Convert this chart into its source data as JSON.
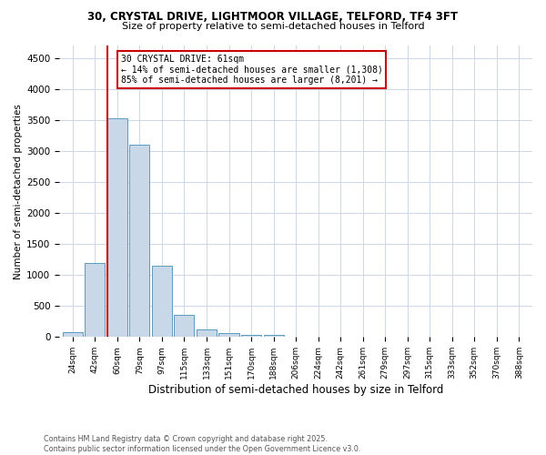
{
  "title_line1": "30, CRYSTAL DRIVE, LIGHTMOOR VILLAGE, TELFORD, TF4 3FT",
  "title_line2": "Size of property relative to semi-detached houses in Telford",
  "xlabel": "Distribution of semi-detached houses by size in Telford",
  "ylabel": "Number of semi-detached properties",
  "categories": [
    "24sqm",
    "42sqm",
    "60sqm",
    "79sqm",
    "97sqm",
    "115sqm",
    "133sqm",
    "151sqm",
    "170sqm",
    "188sqm",
    "206sqm",
    "224sqm",
    "242sqm",
    "261sqm",
    "279sqm",
    "297sqm",
    "315sqm",
    "333sqm",
    "352sqm",
    "370sqm",
    "388sqm"
  ],
  "values": [
    80,
    1200,
    3520,
    3100,
    1150,
    350,
    120,
    60,
    35,
    30,
    0,
    0,
    0,
    0,
    0,
    0,
    0,
    0,
    0,
    0,
    0
  ],
  "bar_color": "#c8d8e8",
  "bar_edge_color": "#5a9abf",
  "marker_bar_index": 2,
  "marker_color": "#cc0000",
  "ylim": [
    0,
    4700
  ],
  "yticks": [
    0,
    500,
    1000,
    1500,
    2000,
    2500,
    3000,
    3500,
    4000,
    4500
  ],
  "annotation_title": "30 CRYSTAL DRIVE: 61sqm",
  "annotation_line1": "← 14% of semi-detached houses are smaller (1,308)",
  "annotation_line2": "85% of semi-detached houses are larger (8,201) →",
  "annotation_box_color": "#ffffff",
  "annotation_box_edge": "#cc0000",
  "footer_line1": "Contains HM Land Registry data © Crown copyright and database right 2025.",
  "footer_line2": "Contains public sector information licensed under the Open Government Licence v3.0.",
  "background_color": "#ffffff",
  "grid_color": "#ccd8e8"
}
